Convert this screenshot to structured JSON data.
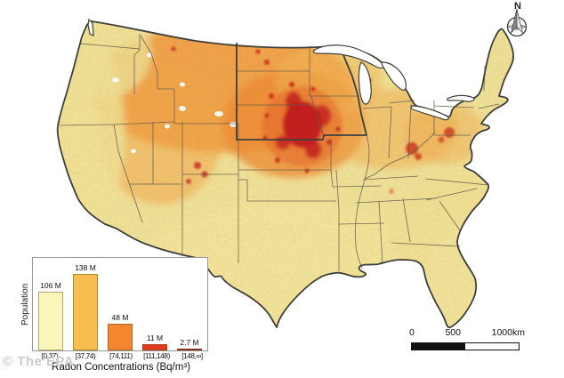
{
  "watermark": "© The EPA",
  "compass": {
    "label": "N"
  },
  "scale_bar": {
    "ticks": [
      "0",
      "500",
      "1000km"
    ]
  },
  "chart_data": {
    "type": "bar",
    "title": "",
    "ylabel": "Population",
    "xlabel": "Radon Concentrations (Bq/m³)",
    "categories": [
      "[0,37)",
      "[37,74)",
      "[74,111)",
      "[111,148)",
      "[148,∞]"
    ],
    "values": [
      106,
      138,
      48,
      11,
      2.7
    ],
    "value_labels": [
      "106 M",
      "138 M",
      "48 M",
      "11 M",
      "2.7 M"
    ],
    "bar_colors": [
      "#FAF6BA",
      "#F6BE4E",
      "#F5862F",
      "#E23B1E",
      "#A81B26"
    ],
    "ylim": [
      0,
      150
    ],
    "grid": false,
    "legend_position": "white panel at bottom-left over map"
  },
  "map": {
    "colors": {
      "class_1_low": "#FAF6BA",
      "class_2": "#F6BE4E",
      "class_3": "#F5862F",
      "class_4": "#E23B1E",
      "class_5_high": "#A81B26",
      "land_base": "#EFE6A2",
      "hotspot_core": "#C01D1F",
      "coastline": "#3F3F3C",
      "lakes": "#FFFFFF"
    }
  }
}
